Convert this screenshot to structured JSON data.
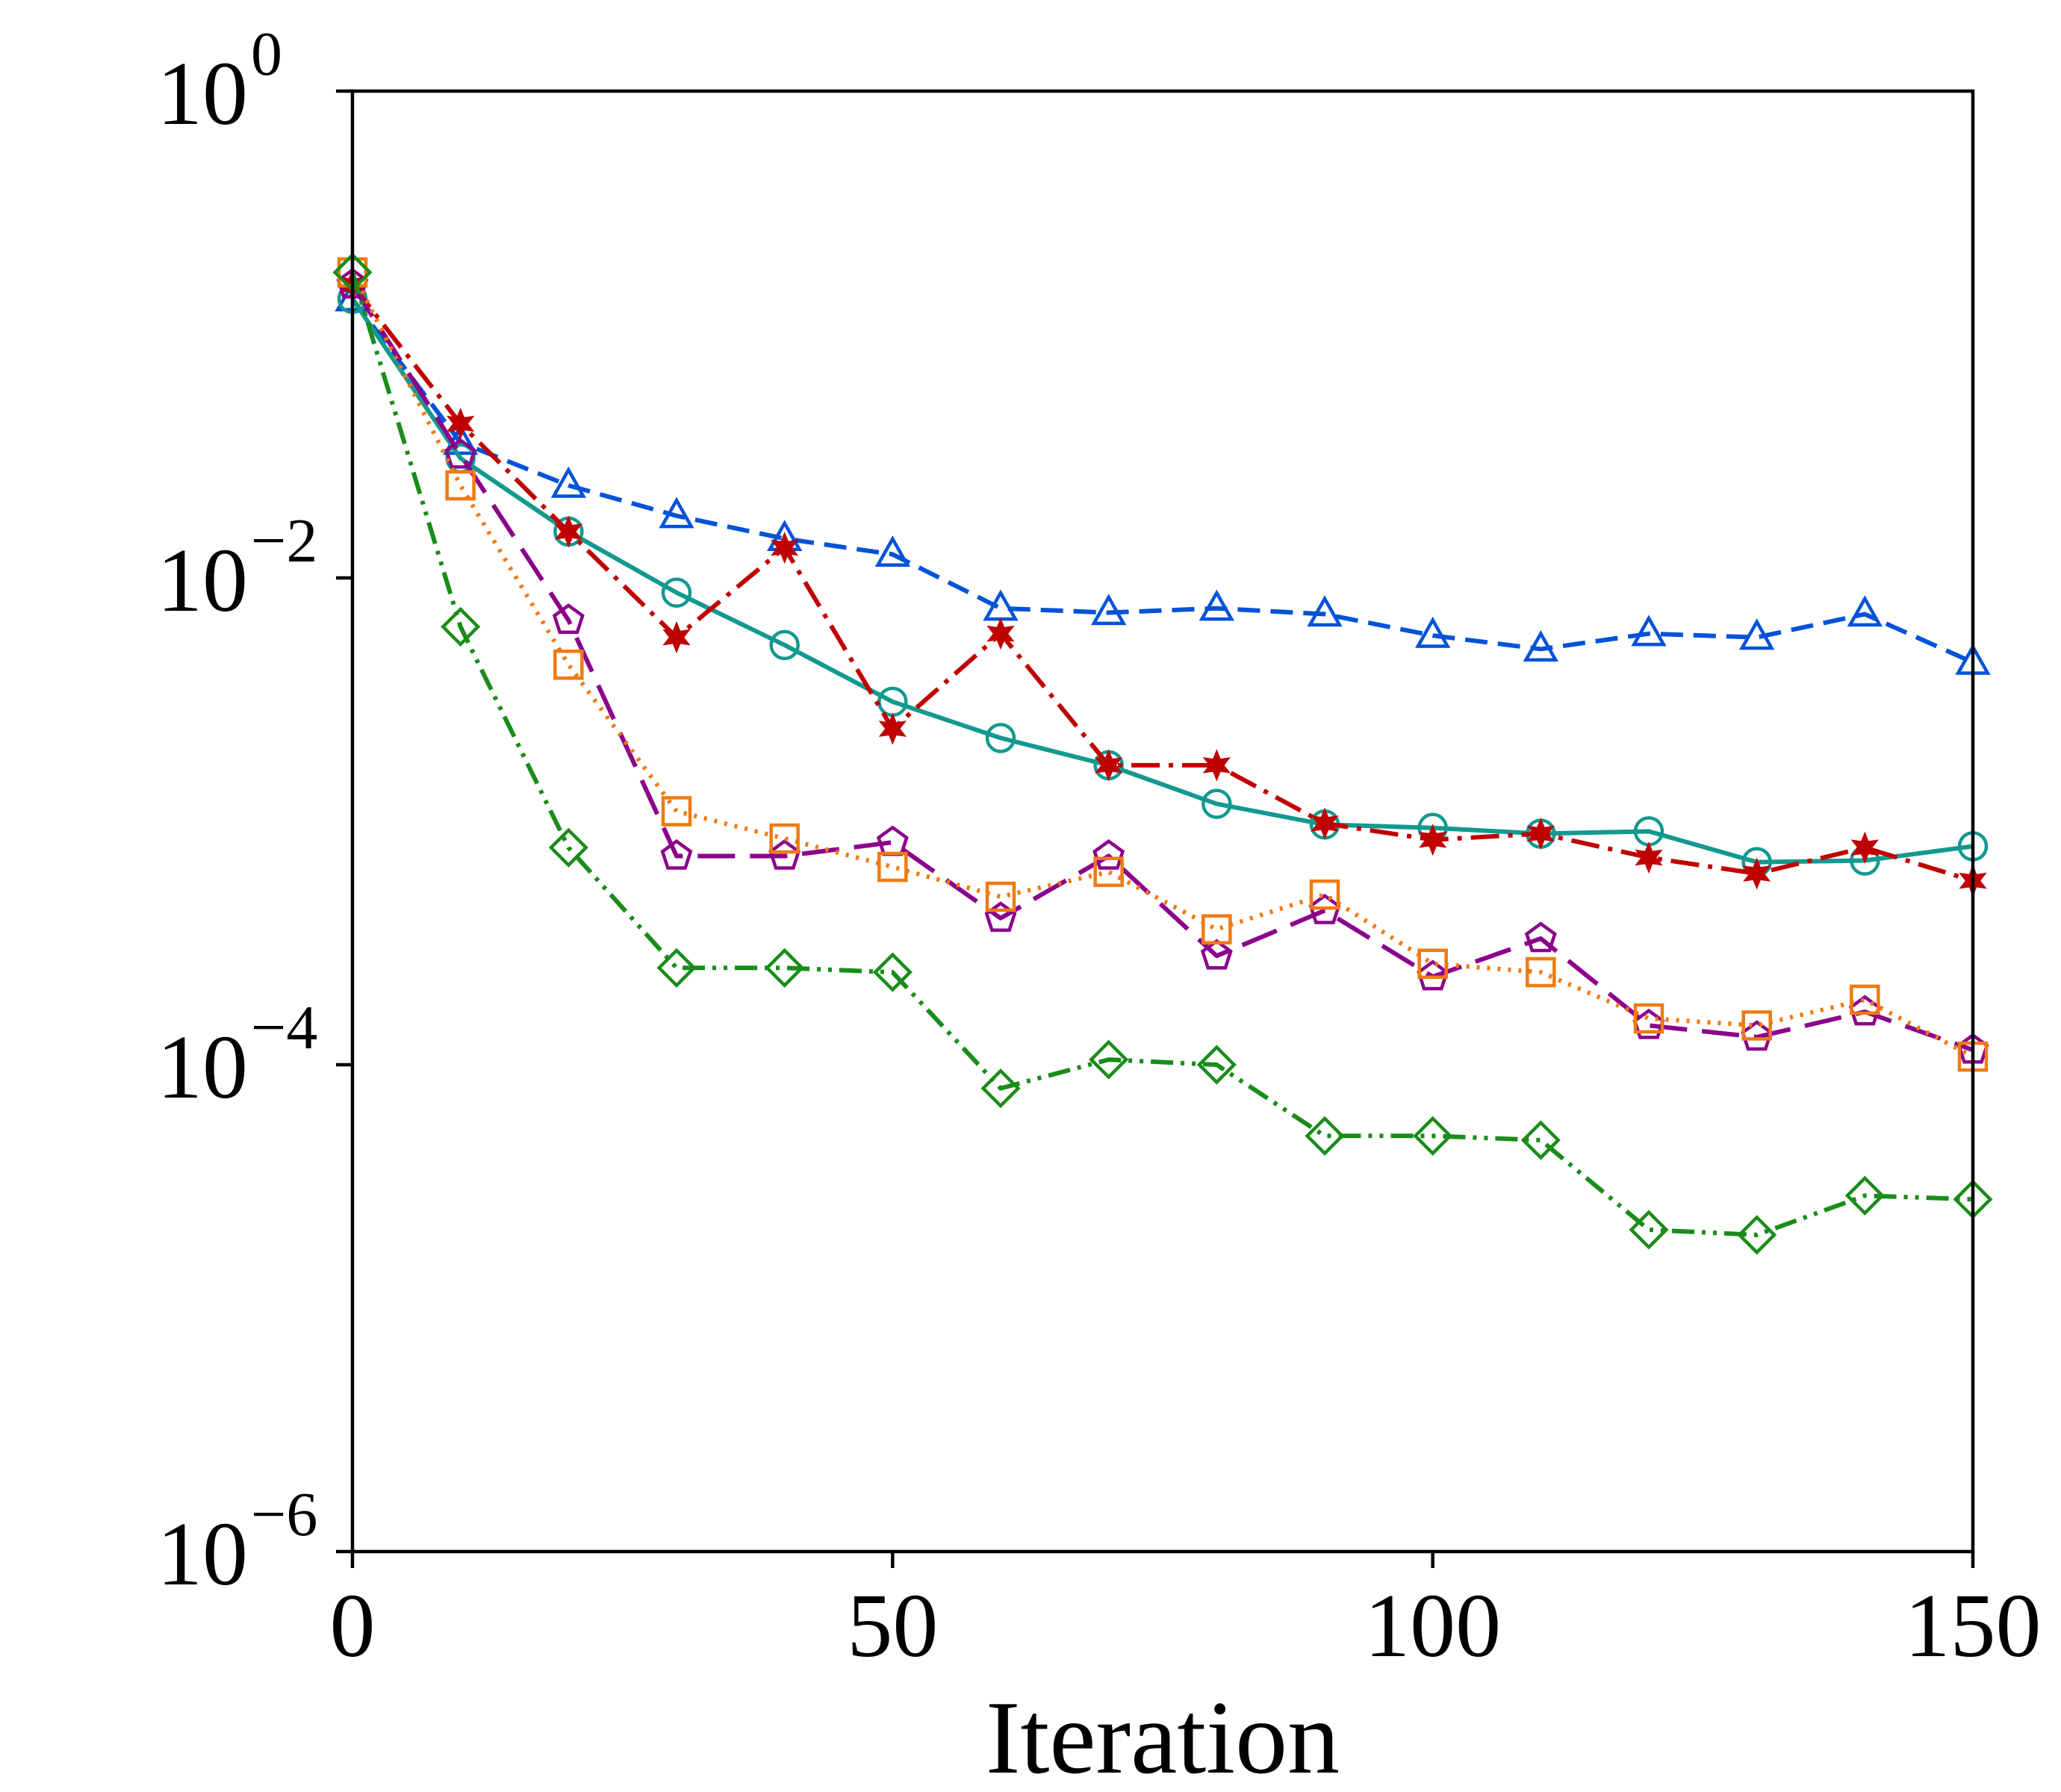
{
  "chart_data": {
    "type": "line",
    "title": "",
    "xlabel": "Iteration",
    "ylabel": "",
    "xlim": [
      0,
      150
    ],
    "ylim": [
      1e-06,
      1
    ],
    "yscale": "log",
    "grid": false,
    "xticks": [
      {
        "value": 0,
        "label": "0"
      },
      {
        "value": 50,
        "label": "50"
      },
      {
        "value": 100,
        "label": "100"
      },
      {
        "value": 150,
        "label": "150"
      }
    ],
    "yticks": [
      {
        "value": 1,
        "base": "10",
        "exp": "0"
      },
      {
        "value": 0.01,
        "base": "10",
        "exp": "−2"
      },
      {
        "value": 0.0001,
        "base": "10",
        "exp": "−4"
      },
      {
        "value": 1e-06,
        "base": "10",
        "exp": "−6"
      }
    ],
    "x": [
      0,
      10,
      20,
      30,
      40,
      50,
      60,
      70,
      80,
      90,
      100,
      110,
      120,
      130,
      140,
      150
    ],
    "series": [
      {
        "name": "triangle-dashed",
        "color": "#0052d9",
        "dash": "30,14",
        "marker": "triangle",
        "values": [
          0.14,
          0.036,
          0.024,
          0.018,
          0.0145,
          0.0125,
          0.0075,
          0.0072,
          0.0075,
          0.0071,
          0.0058,
          0.0051,
          0.0059,
          0.0057,
          0.0071,
          0.0045
        ]
      },
      {
        "name": "circle-solid",
        "color": "#13998f",
        "dash": "",
        "marker": "circle",
        "values": [
          0.14,
          0.031,
          0.0155,
          0.0087,
          0.0053,
          0.0031,
          0.0022,
          0.0017,
          0.00118,
          0.00097,
          0.00094,
          0.00089,
          0.00091,
          0.00068,
          0.00069,
          0.00079
        ]
      },
      {
        "name": "star-dashdot",
        "color": "#c00000",
        "dash": "38,12,6,12",
        "marker": "star",
        "values": [
          0.16,
          0.043,
          0.0155,
          0.0057,
          0.0133,
          0.0024,
          0.0059,
          0.0017,
          0.0017,
          0.00098,
          0.00084,
          0.00089,
          0.00071,
          0.00061,
          0.00078,
          0.00057
        ]
      },
      {
        "name": "pentagon-longdash",
        "color": "#8b008b",
        "dash": "50,20",
        "marker": "pentagon",
        "values": [
          0.16,
          0.032,
          0.0067,
          0.00072,
          0.00072,
          0.00082,
          0.0004,
          0.00072,
          0.00028,
          0.00043,
          0.00023,
          0.00033,
          0.000145,
          0.00013,
          0.000165,
          0.000115
        ]
      },
      {
        "name": "square-dotted",
        "color": "#f07a10",
        "dash": "4,10",
        "marker": "square",
        "values": [
          0.18,
          0.024,
          0.0044,
          0.0011,
          0.00085,
          0.00065,
          0.00049,
          0.00062,
          0.00036,
          0.0005,
          0.00026,
          0.00024,
          0.000155,
          0.000145,
          0.000185,
          0.000108
        ]
      },
      {
        "name": "diamond-dashdotdot",
        "color": "#1a8c1a",
        "dash": "30,10,5,10,5,10",
        "marker": "diamond",
        "values": [
          0.18,
          0.0063,
          0.00078,
          0.00025,
          0.00025,
          0.00024,
          8e-05,
          0.000105,
          0.0001,
          5.1e-05,
          5.1e-05,
          4.9e-05,
          2.1e-05,
          2e-05,
          2.9e-05,
          2.8e-05
        ]
      }
    ]
  }
}
